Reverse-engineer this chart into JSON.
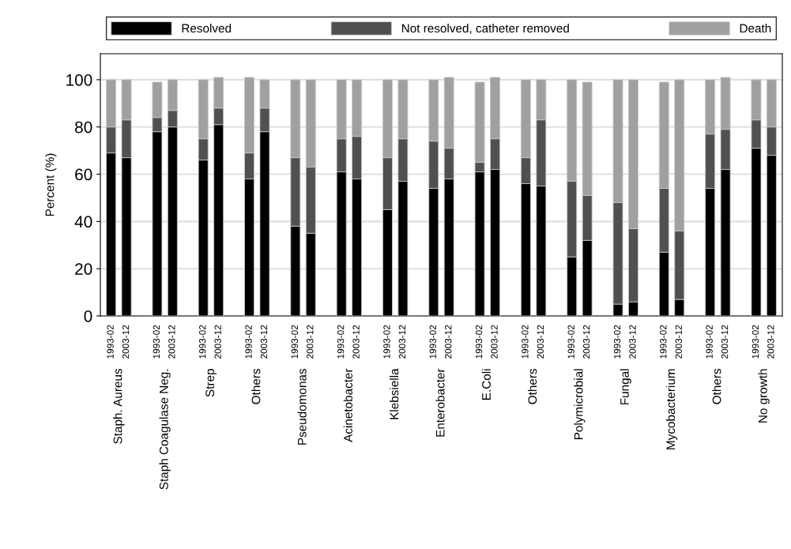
{
  "chart_data": {
    "type": "bar",
    "stacked": true,
    "ylabel": "Percent (%)",
    "categories": [
      "1993-02",
      "2003-12",
      null,
      "1993-02",
      "2003-12",
      null,
      "1993-02",
      "2003-12",
      null,
      "1993-02",
      "2003-12",
      null,
      "1993-02",
      "2003-12",
      null,
      "1993-02",
      "2003-12",
      null,
      "1993-02",
      "2003-12",
      null,
      "1993-02",
      "2003-12",
      null,
      "1993-02",
      "2003-12",
      null,
      "1993-02",
      "2003-12",
      null,
      "1993-02",
      "2003-12",
      null,
      "1993-02",
      "2003-12",
      null,
      "1993-02",
      "2003-12",
      null,
      "1993-02",
      "2003-12",
      null,
      "1993-02",
      "2003-12"
    ],
    "annotations": [
      "Staph. Aureus",
      "Staph Coagulase Neg.",
      "Strep",
      "Others",
      "Pseudomonas",
      "Acinetobacter",
      "Klebsiella",
      "Enterobacter",
      "E.Coli",
      "Others",
      "Polymicrobial",
      "Fungal",
      "Mycobacterium",
      "Others",
      "No growth"
    ],
    "series": [
      {
        "name": "Resolved",
        "color": "#000000",
        "values": [
          69,
          67,
          null,
          78,
          80,
          null,
          66,
          81,
          null,
          58,
          78,
          null,
          38,
          35,
          null,
          61,
          58,
          null,
          45,
          57,
          null,
          54,
          58,
          null,
          61,
          62,
          null,
          56,
          55,
          null,
          25,
          32,
          null,
          5,
          6,
          null,
          27,
          7,
          null,
          54,
          62,
          null,
          71,
          68
        ]
      },
      {
        "name": "Not resolved, catheter removed",
        "color": "#505050",
        "values": [
          11,
          16,
          null,
          6,
          7,
          null,
          9,
          7,
          null,
          11,
          10,
          null,
          29,
          28,
          null,
          14,
          18,
          null,
          22,
          18,
          null,
          20,
          13,
          null,
          4,
          13,
          null,
          11,
          28,
          null,
          32,
          19,
          null,
          43,
          31,
          null,
          27,
          29,
          null,
          23,
          17,
          null,
          12,
          12
        ]
      },
      {
        "name": "Death",
        "color": "#a0a0a0",
        "values": [
          20,
          17,
          null,
          15,
          13,
          null,
          25,
          13,
          null,
          32,
          12,
          null,
          33,
          37,
          null,
          25,
          24,
          null,
          33,
          25,
          null,
          26,
          30,
          null,
          34,
          26,
          null,
          33,
          17,
          null,
          43,
          48,
          null,
          52,
          63,
          null,
          45,
          64,
          null,
          23,
          22,
          null,
          17,
          20
        ]
      }
    ],
    "ylim": [
      0,
      111
    ],
    "yticks": [
      0,
      20,
      40,
      60,
      80,
      100
    ],
    "grid": "y",
    "legend": "top"
  }
}
